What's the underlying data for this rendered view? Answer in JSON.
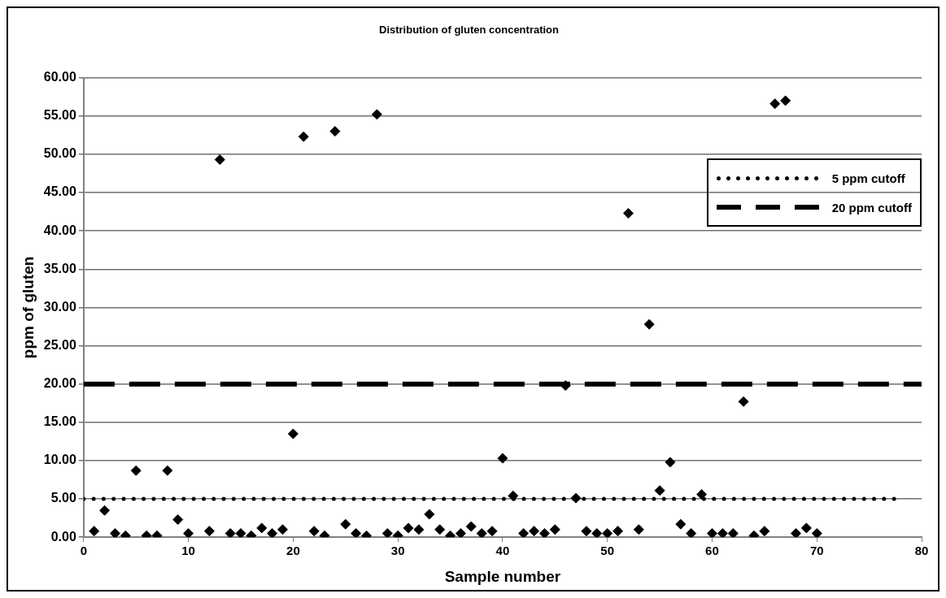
{
  "chart_data": {
    "type": "scatter",
    "title": "Distribution of gluten concentration",
    "xlabel": "Sample number",
    "ylabel": "ppm of gluten",
    "xlim": [
      0,
      80
    ],
    "xticks": [
      0,
      10,
      20,
      30,
      40,
      50,
      60,
      70,
      80
    ],
    "ylim": [
      0,
      60
    ],
    "yticks": [
      {
        "value": 0,
        "label": "0.00"
      },
      {
        "value": 5,
        "label": "5.00"
      },
      {
        "value": 10,
        "label": "10.00"
      },
      {
        "value": 15,
        "label": "15.00"
      },
      {
        "value": 20,
        "label": "20.00"
      },
      {
        "value": 25,
        "label": "25.00"
      },
      {
        "value": 30,
        "label": "30.00"
      },
      {
        "value": 35,
        "label": "35.00"
      },
      {
        "value": 40,
        "label": "40.00"
      },
      {
        "value": 45,
        "label": "45.00"
      },
      {
        "value": 50,
        "label": "50.00"
      },
      {
        "value": 55,
        "label": "55.00"
      },
      {
        "value": 60,
        "label": "60.00"
      }
    ],
    "grid": "y",
    "legend": "top right",
    "marker": "diamond",
    "series": [
      {
        "color": "#000000",
        "x": [
          1,
          2,
          3,
          4,
          5,
          6,
          7,
          8,
          9,
          10,
          12,
          13,
          14,
          15,
          16,
          17,
          18,
          19,
          20,
          21,
          22,
          23,
          24,
          25,
          26,
          27,
          28,
          29,
          30,
          31,
          32,
          33,
          34,
          35,
          36,
          37,
          38,
          39,
          40,
          41,
          42,
          43,
          44,
          45,
          46,
          47,
          48,
          49,
          50,
          51,
          52,
          53,
          54,
          55,
          56,
          57,
          58,
          59,
          60,
          61,
          62,
          63,
          64,
          65,
          66,
          67,
          68,
          69,
          70
        ],
        "values": [
          0.8,
          3.5,
          0.5,
          0.2,
          8.7,
          0.2,
          0.2,
          8.7,
          2.3,
          0.5,
          0.8,
          49.3,
          0.5,
          0.5,
          0.2,
          1.2,
          0.5,
          1.0,
          13.5,
          52.3,
          0.8,
          0.2,
          53.0,
          1.7,
          0.5,
          0.2,
          55.2,
          0.5,
          0.2,
          1.2,
          1.0,
          3.0,
          1.0,
          0.2,
          0.5,
          1.4,
          0.5,
          0.8,
          10.3,
          5.4,
          0.5,
          0.8,
          0.5,
          1.0,
          19.8,
          5.1,
          0.8,
          0.5,
          0.5,
          0.8,
          42.3,
          1.0,
          27.8,
          6.1,
          9.8,
          1.7,
          0.5,
          5.6,
          0.5,
          0.5,
          0.5,
          17.7,
          0.2,
          0.8,
          56.6,
          57.0,
          0.5,
          1.2,
          0.5
        ]
      },
      {
        "type": "line",
        "name": "5 ppm cutoff",
        "color": "#000000",
        "line_style": "dotted",
        "marker": "none",
        "x": [
          0,
          78
        ],
        "values": [
          5,
          5
        ]
      },
      {
        "type": "line",
        "name": "20 ppm cutoff",
        "color": "#000000",
        "line_style": "dashed",
        "marker": "none",
        "x": [
          0,
          80
        ],
        "values": [
          20,
          20
        ]
      }
    ]
  }
}
